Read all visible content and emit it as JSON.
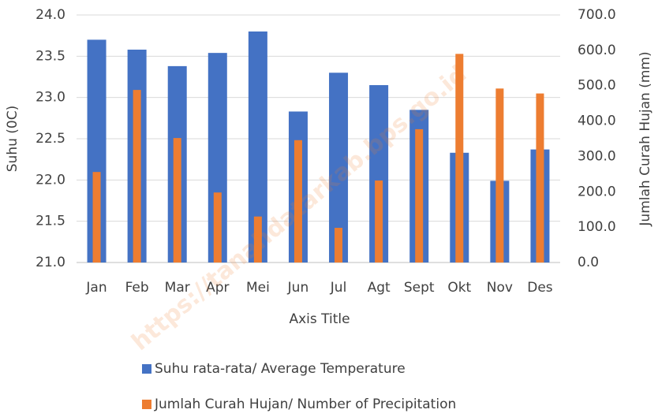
{
  "chart_data": {
    "type": "bar",
    "x_label": "Axis Title",
    "y_label": "Suhu (0C)",
    "y2_label": "Jumlah Curah Hujan (mm)",
    "watermark": "https://tanahdatarkab.bps.go.id",
    "categories": [
      "Jan",
      "Feb",
      "Mar",
      "Apr",
      "Mei",
      "Jun",
      "Jul",
      "Agt",
      "Sept",
      "Okt",
      "Nov",
      "Des"
    ],
    "series": [
      {
        "name": "Suhu rata-rata/ Average Temperature",
        "color": "#4472c4",
        "axis": "y",
        "values": [
          23.7,
          23.58,
          23.38,
          23.54,
          23.8,
          22.83,
          23.3,
          23.15,
          22.85,
          22.33,
          21.99,
          22.37
        ]
      },
      {
        "name": "Jumlah Curah Hujan/ Number of Precipitation",
        "color": "#ed7d31",
        "axis": "y2",
        "values": [
          256,
          488,
          352,
          198,
          130,
          346,
          98,
          232,
          377,
          590,
          492,
          478
        ]
      }
    ],
    "ylim": [
      21.0,
      24.0
    ],
    "yticks": [
      {
        "value": 21,
        "label": "21.0"
      },
      21.5,
      {
        "value": 22,
        "label": "22.0"
      },
      22.5,
      {
        "value": 23,
        "label": "23.0"
      },
      23.5,
      {
        "value": 24,
        "label": "24.0"
      }
    ],
    "y2lim": [
      0,
      700
    ],
    "y2ticks": [
      {
        "value": 0,
        "label": "0.0"
      },
      {
        "value": 100,
        "label": "100.0"
      },
      {
        "value": 200,
        "label": "200.0"
      },
      {
        "value": 300,
        "label": "300.0"
      },
      {
        "value": 400,
        "label": "400.0"
      },
      {
        "value": 500,
        "label": "500.0"
      },
      {
        "value": 600,
        "label": "600.0"
      },
      {
        "value": 700,
        "label": "700.0"
      }
    ],
    "grid": true,
    "legend": "bottom"
  }
}
